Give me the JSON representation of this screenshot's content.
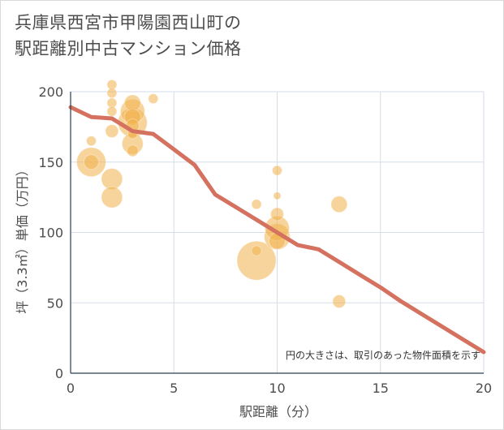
{
  "chart_data": {
    "type": "scatter",
    "title_lines": [
      "兵庫県西宮市甲陽園西山町の",
      "駅距離別中古マンション価格"
    ],
    "xlabel": "駅距離（分）",
    "ylabel": "坪（3.3㎡）単価（万円）",
    "xlim": [
      0,
      20
    ],
    "ylim": [
      0,
      200
    ],
    "x_ticks": [
      0,
      5,
      10,
      15,
      20
    ],
    "y_ticks": [
      0,
      50,
      100,
      150,
      200
    ],
    "grid": true,
    "annotation": "円の大きさは、取引のあった物件面積を示す",
    "colors": {
      "bubble": "#f0b04a",
      "trend": "#d4715f",
      "grid": "#d6dde8",
      "axis": "#2b3e50"
    },
    "series": [
      {
        "kind": "bubble",
        "points": [
          {
            "x": 1,
            "y": 165,
            "s": 1
          },
          {
            "x": 1,
            "y": 150,
            "s": 7
          },
          {
            "x": 1,
            "y": 150,
            "s": 2.5
          },
          {
            "x": 2,
            "y": 205,
            "s": 1
          },
          {
            "x": 2,
            "y": 199,
            "s": 1
          },
          {
            "x": 2,
            "y": 192,
            "s": 1
          },
          {
            "x": 2,
            "y": 186,
            "s": 1
          },
          {
            "x": 2,
            "y": 172,
            "s": 2
          },
          {
            "x": 2,
            "y": 138,
            "s": 4.5
          },
          {
            "x": 2,
            "y": 125,
            "s": 4.5
          },
          {
            "x": 3,
            "y": 192,
            "s": 3
          },
          {
            "x": 3,
            "y": 186,
            "s": 5.5
          },
          {
            "x": 3,
            "y": 182,
            "s": 3
          },
          {
            "x": 3,
            "y": 178,
            "s": 7
          },
          {
            "x": 3,
            "y": 176,
            "s": 2
          },
          {
            "x": 3,
            "y": 170,
            "s": 1
          },
          {
            "x": 3,
            "y": 163,
            "s": 4.5
          },
          {
            "x": 3,
            "y": 158,
            "s": 1.5
          },
          {
            "x": 4,
            "y": 195,
            "s": 1
          },
          {
            "x": 9,
            "y": 120,
            "s": 1
          },
          {
            "x": 9,
            "y": 87,
            "s": 1
          },
          {
            "x": 9,
            "y": 80,
            "s": 10
          },
          {
            "x": 10,
            "y": 144,
            "s": 1
          },
          {
            "x": 10,
            "y": 126,
            "s": 0.3
          },
          {
            "x": 10,
            "y": 113,
            "s": 2
          },
          {
            "x": 10,
            "y": 103,
            "s": 5.5
          },
          {
            "x": 10,
            "y": 97,
            "s": 6
          },
          {
            "x": 10,
            "y": 94,
            "s": 3
          },
          {
            "x": 13,
            "y": 120,
            "s": 3
          },
          {
            "x": 13,
            "y": 51,
            "s": 2
          }
        ]
      },
      {
        "kind": "line",
        "x": [
          0,
          1,
          2,
          3,
          4,
          5,
          6,
          7,
          8,
          9,
          10,
          11,
          12,
          13,
          14,
          15,
          16,
          17,
          18,
          19,
          20
        ],
        "y": [
          189,
          182,
          181,
          172,
          170,
          159,
          148,
          127,
          118,
          109,
          100,
          91,
          88,
          79,
          70,
          61,
          51,
          42,
          33,
          24,
          15
        ]
      }
    ]
  }
}
